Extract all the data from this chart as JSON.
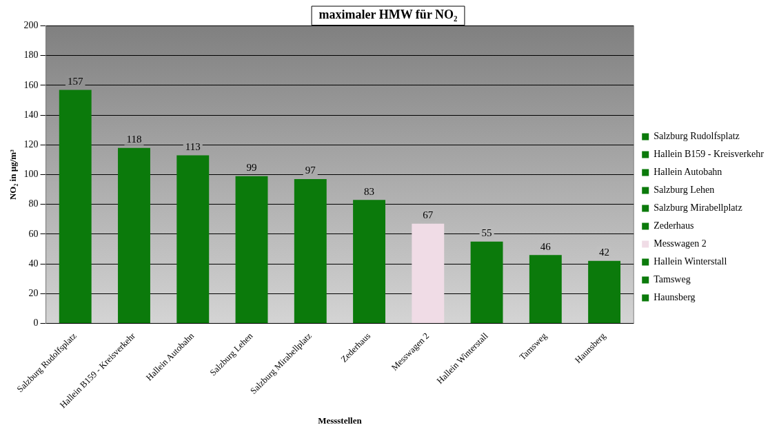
{
  "chart_data": {
    "type": "bar",
    "title": "maximaler HMW für NO₂",
    "xlabel": "Messstellen",
    "ylabel": "NO₂ in µg/m³",
    "categories": [
      "Salzburg Rudolfsplatz",
      "Hallein B159 - Kreisverkehr",
      "Hallein Autobahn",
      "Salzburg Lehen",
      "Salzburg Mirabellplatz",
      "Zederhaus",
      "Messwagen 2",
      "Hallein Winterstall",
      "Tamsweg",
      "Haunsberg"
    ],
    "series": [
      {
        "name": "Salzburg Rudolfsplatz",
        "color": "#0b7a0b",
        "values": [
          157,
          null,
          null,
          null,
          null,
          null,
          null,
          null,
          null,
          null
        ]
      },
      {
        "name": "Hallein B159 - Kreisverkehr",
        "color": "#0b7a0b",
        "values": [
          null,
          118,
          null,
          null,
          null,
          null,
          null,
          null,
          null,
          null
        ]
      },
      {
        "name": "Hallein Autobahn",
        "color": "#0b7a0b",
        "values": [
          null,
          null,
          113,
          null,
          null,
          null,
          null,
          null,
          null,
          null
        ]
      },
      {
        "name": "Salzburg Lehen",
        "color": "#0b7a0b",
        "values": [
          null,
          null,
          null,
          99,
          null,
          null,
          null,
          null,
          null,
          null
        ]
      },
      {
        "name": "Salzburg Mirabellplatz",
        "color": "#0b7a0b",
        "values": [
          null,
          null,
          null,
          null,
          97,
          null,
          null,
          null,
          null,
          null
        ]
      },
      {
        "name": "Zederhaus",
        "color": "#0b7a0b",
        "values": [
          null,
          null,
          null,
          null,
          null,
          83,
          null,
          null,
          null,
          null
        ]
      },
      {
        "name": "Messwagen 2",
        "color": "#f0dce6",
        "values": [
          null,
          null,
          null,
          null,
          null,
          null,
          67,
          null,
          null,
          null
        ]
      },
      {
        "name": "Hallein Winterstall",
        "color": "#0b7a0b",
        "values": [
          null,
          null,
          null,
          null,
          null,
          null,
          null,
          55,
          null,
          null
        ]
      },
      {
        "name": "Tamsweg",
        "color": "#0b7a0b",
        "values": [
          null,
          null,
          null,
          null,
          null,
          null,
          null,
          null,
          46,
          null
        ]
      },
      {
        "name": "Haunsberg",
        "color": "#0b7a0b",
        "values": [
          null,
          null,
          null,
          null,
          null,
          null,
          null,
          null,
          null,
          42
        ]
      }
    ],
    "ylim": [
      0,
      200
    ],
    "yticks": [
      0,
      20,
      40,
      60,
      80,
      100,
      120,
      140,
      160,
      180,
      200
    ],
    "grid": "y",
    "legend": "right",
    "data_labels": true
  }
}
